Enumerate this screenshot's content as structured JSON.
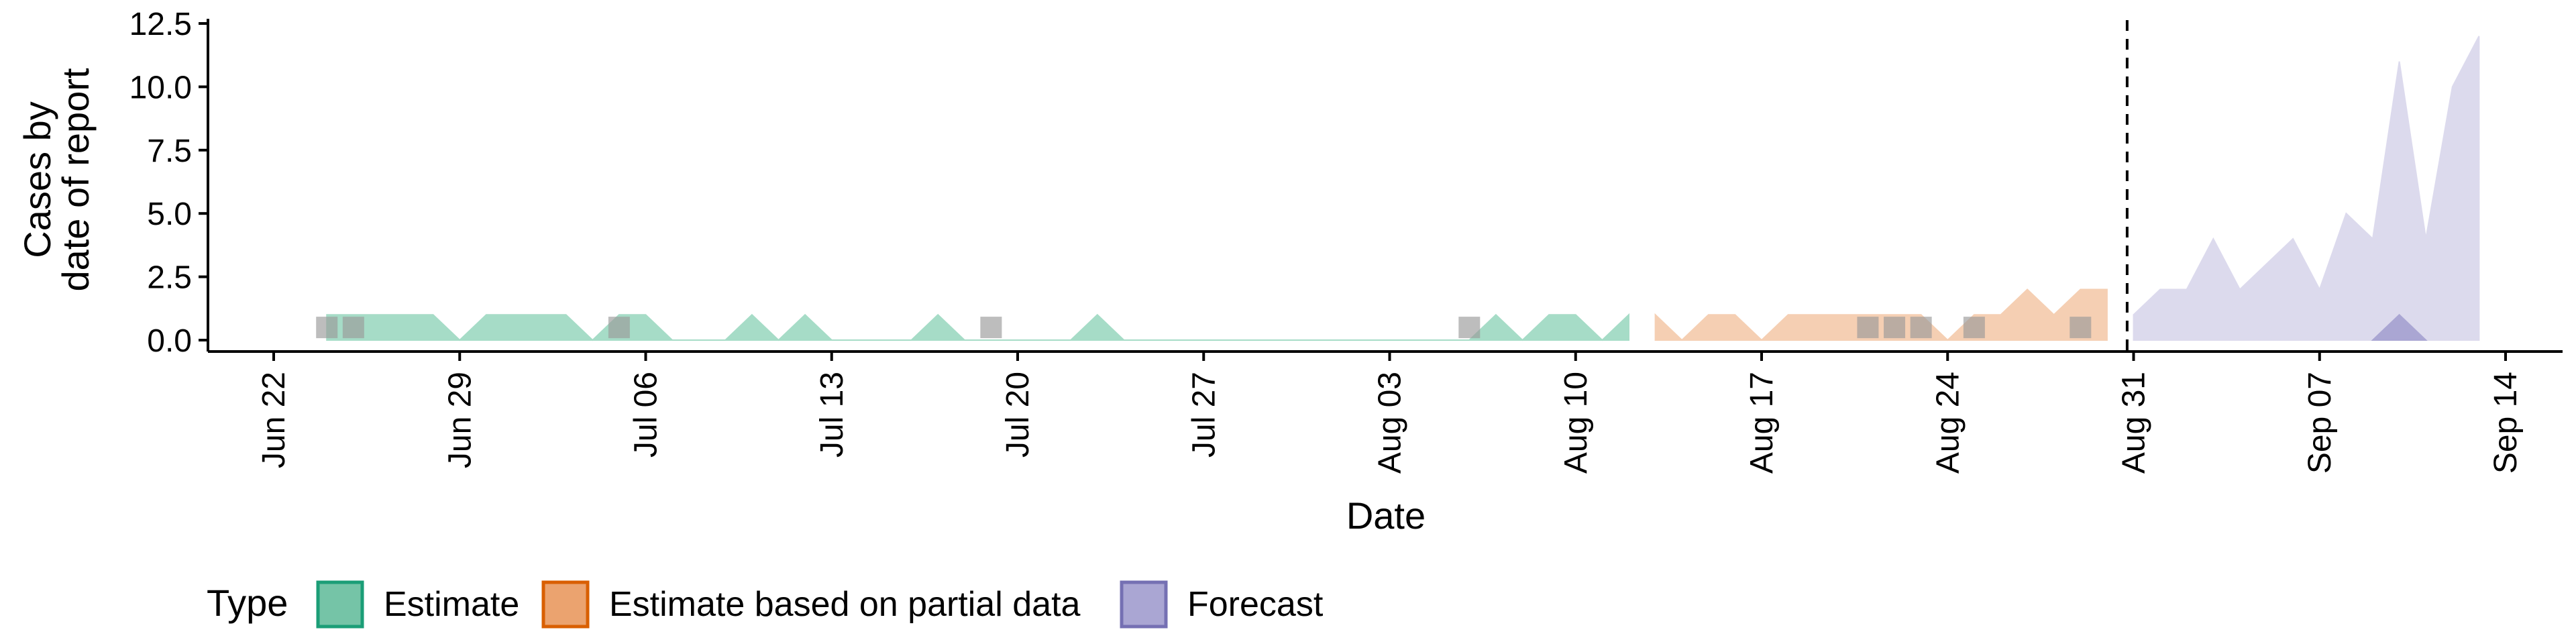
{
  "chart_data": {
    "type": "area",
    "xlabel": "Date",
    "ylabel_lines": [
      "Cases by",
      "date of report"
    ],
    "ylim": [
      -0.5,
      12.5
    ],
    "yticks": [
      0.0,
      2.5,
      5.0,
      7.5,
      10.0,
      12.5
    ],
    "ytick_labels": [
      "0.0",
      "2.5",
      "5.0",
      "7.5",
      "10.0",
      "12.5"
    ],
    "xlim": [
      "2020-06-22",
      "2020-09-14"
    ],
    "xticks": [
      "2020-06-22",
      "2020-06-29",
      "2020-07-06",
      "2020-07-13",
      "2020-07-20",
      "2020-07-27",
      "2020-08-03",
      "2020-08-10",
      "2020-08-17",
      "2020-08-24",
      "2020-08-31",
      "2020-09-07",
      "2020-09-14"
    ],
    "xtick_labels": [
      "Jun 22",
      "Jun 29",
      "Jul 06",
      "Jul 13",
      "Jul 20",
      "Jul 27",
      "Aug 03",
      "Aug 10",
      "Aug 17",
      "Aug 24",
      "Aug 31",
      "Sep 07",
      "Sep 14"
    ],
    "cutoff_date": "2020-08-30",
    "legend": {
      "title": "Type",
      "position": "bottom",
      "items": [
        {
          "label": "Estimate",
          "fill": "#75c4a7",
          "stroke": "#1b9e77"
        },
        {
          "label": "Estimate based on partial data",
          "fill": "#eba36f",
          "stroke": "#d95f02"
        },
        {
          "label": "Forecast",
          "fill": "#aaa6d3",
          "stroke": "#7570b3"
        }
      ]
    },
    "series": [
      {
        "type_label": "Estimate",
        "fill": "#a6dcc7",
        "x": [
          "2020-06-24",
          "2020-06-25",
          "2020-06-26",
          "2020-06-27",
          "2020-06-28",
          "2020-06-29",
          "2020-06-30",
          "2020-07-01",
          "2020-07-02",
          "2020-07-03",
          "2020-07-04",
          "2020-07-05",
          "2020-07-06",
          "2020-07-07",
          "2020-07-08",
          "2020-07-09",
          "2020-07-10",
          "2020-07-11",
          "2020-07-12",
          "2020-07-13",
          "2020-07-14",
          "2020-07-15",
          "2020-07-16",
          "2020-07-17",
          "2020-07-18",
          "2020-07-19",
          "2020-07-20",
          "2020-07-21",
          "2020-07-22",
          "2020-07-23",
          "2020-07-24",
          "2020-07-25",
          "2020-07-26",
          "2020-07-27",
          "2020-07-28",
          "2020-07-29",
          "2020-07-30",
          "2020-07-31",
          "2020-08-01",
          "2020-08-02",
          "2020-08-03",
          "2020-08-04",
          "2020-08-05",
          "2020-08-06",
          "2020-08-07",
          "2020-08-08",
          "2020-08-09",
          "2020-08-10",
          "2020-08-11",
          "2020-08-12"
        ],
        "upper": [
          1,
          1,
          1,
          1,
          1,
          0,
          1,
          1,
          1,
          1,
          0,
          1,
          1,
          0,
          0,
          0,
          1,
          0,
          1,
          0,
          0,
          0,
          0,
          1,
          0,
          0,
          0,
          0,
          0,
          1,
          0,
          0,
          0,
          0,
          0,
          0,
          0,
          0,
          0,
          0,
          0,
          0,
          0,
          0,
          1,
          0,
          1,
          1,
          0,
          1
        ],
        "lower": [
          0,
          0,
          0,
          0,
          0,
          0,
          0,
          0,
          0,
          0,
          0,
          0,
          0,
          0,
          0,
          0,
          0,
          0,
          0,
          0,
          0,
          0,
          0,
          0,
          0,
          0,
          0,
          0,
          0,
          0,
          0,
          0,
          0,
          0,
          0,
          0,
          0,
          0,
          0,
          0,
          0,
          0,
          0,
          0,
          0,
          0,
          0,
          0,
          0,
          0
        ]
      },
      {
        "type_label": "Estimate based on partial data",
        "fill": "#f5cfb3",
        "x": [
          "2020-08-13",
          "2020-08-14",
          "2020-08-15",
          "2020-08-16",
          "2020-08-17",
          "2020-08-18",
          "2020-08-19",
          "2020-08-20",
          "2020-08-21",
          "2020-08-22",
          "2020-08-23",
          "2020-08-24",
          "2020-08-25",
          "2020-08-26",
          "2020-08-27",
          "2020-08-28",
          "2020-08-29",
          "2020-08-30"
        ],
        "upper": [
          1,
          0,
          1,
          1,
          0,
          1,
          1,
          1,
          1,
          1,
          1,
          0,
          1,
          1,
          2,
          1,
          2,
          2
        ],
        "lower": [
          0,
          0,
          0,
          0,
          0,
          0,
          0,
          0,
          0,
          0,
          0,
          0,
          0,
          0,
          0,
          0,
          0,
          0
        ]
      },
      {
        "type_label": "Forecast",
        "fill": "#dcdaed",
        "x": [
          "2020-08-31",
          "2020-09-01",
          "2020-09-02",
          "2020-09-03",
          "2020-09-04",
          "2020-09-05",
          "2020-09-06",
          "2020-09-07",
          "2020-09-08",
          "2020-09-09",
          "2020-09-10",
          "2020-09-11",
          "2020-09-12",
          "2020-09-13"
        ],
        "upper": [
          1,
          2,
          2,
          4,
          2,
          3,
          4,
          2,
          5,
          4,
          11,
          4,
          10,
          12
        ],
        "lower": [
          0,
          0,
          0,
          0,
          0,
          0,
          0,
          0,
          0,
          0,
          0,
          0,
          0,
          0
        ]
      },
      {
        "type_label": "Forecast",
        "fill": "#aaa6d3",
        "x": [
          "2020-09-09",
          "2020-09-10",
          "2020-09-11"
        ],
        "upper": [
          0,
          1,
          0
        ],
        "lower": [
          0,
          0,
          0
        ]
      }
    ],
    "observed_points": {
      "color": "#999999",
      "x": [
        "2020-06-24",
        "2020-06-25",
        "2020-07-05",
        "2020-07-19",
        "2020-08-06",
        "2020-08-21",
        "2020-08-22",
        "2020-08-23",
        "2020-08-25",
        "2020-08-29"
      ],
      "y": [
        0.5,
        0.5,
        0.5,
        0.5,
        0.5,
        0.5,
        0.5,
        0.5,
        0.5,
        0.5
      ]
    }
  }
}
